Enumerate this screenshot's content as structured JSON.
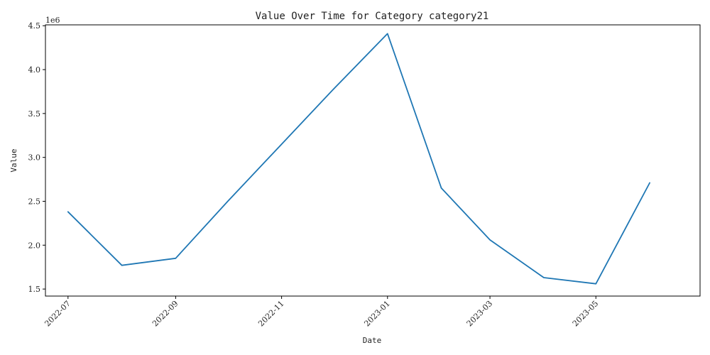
{
  "chart_data": {
    "type": "line",
    "title": "Value Over Time for Category category21",
    "xlabel": "Date",
    "ylabel": "Value",
    "y_offset_label": "1e6",
    "line_color": "#1f77b4",
    "grid": false,
    "legend": "none",
    "xlim": [
      "2022-06-18",
      "2023-06-30"
    ],
    "ylim": [
      1.42,
      4.51
    ],
    "x": [
      "2022-07-01",
      "2022-08-01",
      "2022-09-01",
      "2022-10-01",
      "2022-11-01",
      "2022-12-01",
      "2023-01-01",
      "2023-02-01",
      "2023-03-01",
      "2023-04-01",
      "2023-05-01",
      "2023-06-01"
    ],
    "y": [
      2.38,
      1.77,
      1.85,
      2.5,
      3.15,
      3.78,
      4.41,
      2.65,
      2.06,
      1.63,
      1.56,
      2.71
    ],
    "x_ticks": [
      {
        "date": "2022-07-01",
        "label": "2022-07"
      },
      {
        "date": "2022-09-01",
        "label": "2022-09"
      },
      {
        "date": "2022-11-01",
        "label": "2022-11"
      },
      {
        "date": "2023-01-01",
        "label": "2023-01"
      },
      {
        "date": "2023-03-01",
        "label": "2023-03"
      },
      {
        "date": "2023-05-01",
        "label": "2023-05"
      }
    ],
    "y_ticks": [
      {
        "value": 1.5,
        "label": "1.5"
      },
      {
        "value": 2.0,
        "label": "2.0"
      },
      {
        "value": 2.5,
        "label": "2.5"
      },
      {
        "value": 3.0,
        "label": "3.0"
      },
      {
        "value": 3.5,
        "label": "3.5"
      },
      {
        "value": 4.0,
        "label": "4.0"
      },
      {
        "value": 4.5,
        "label": "4.5"
      }
    ]
  }
}
